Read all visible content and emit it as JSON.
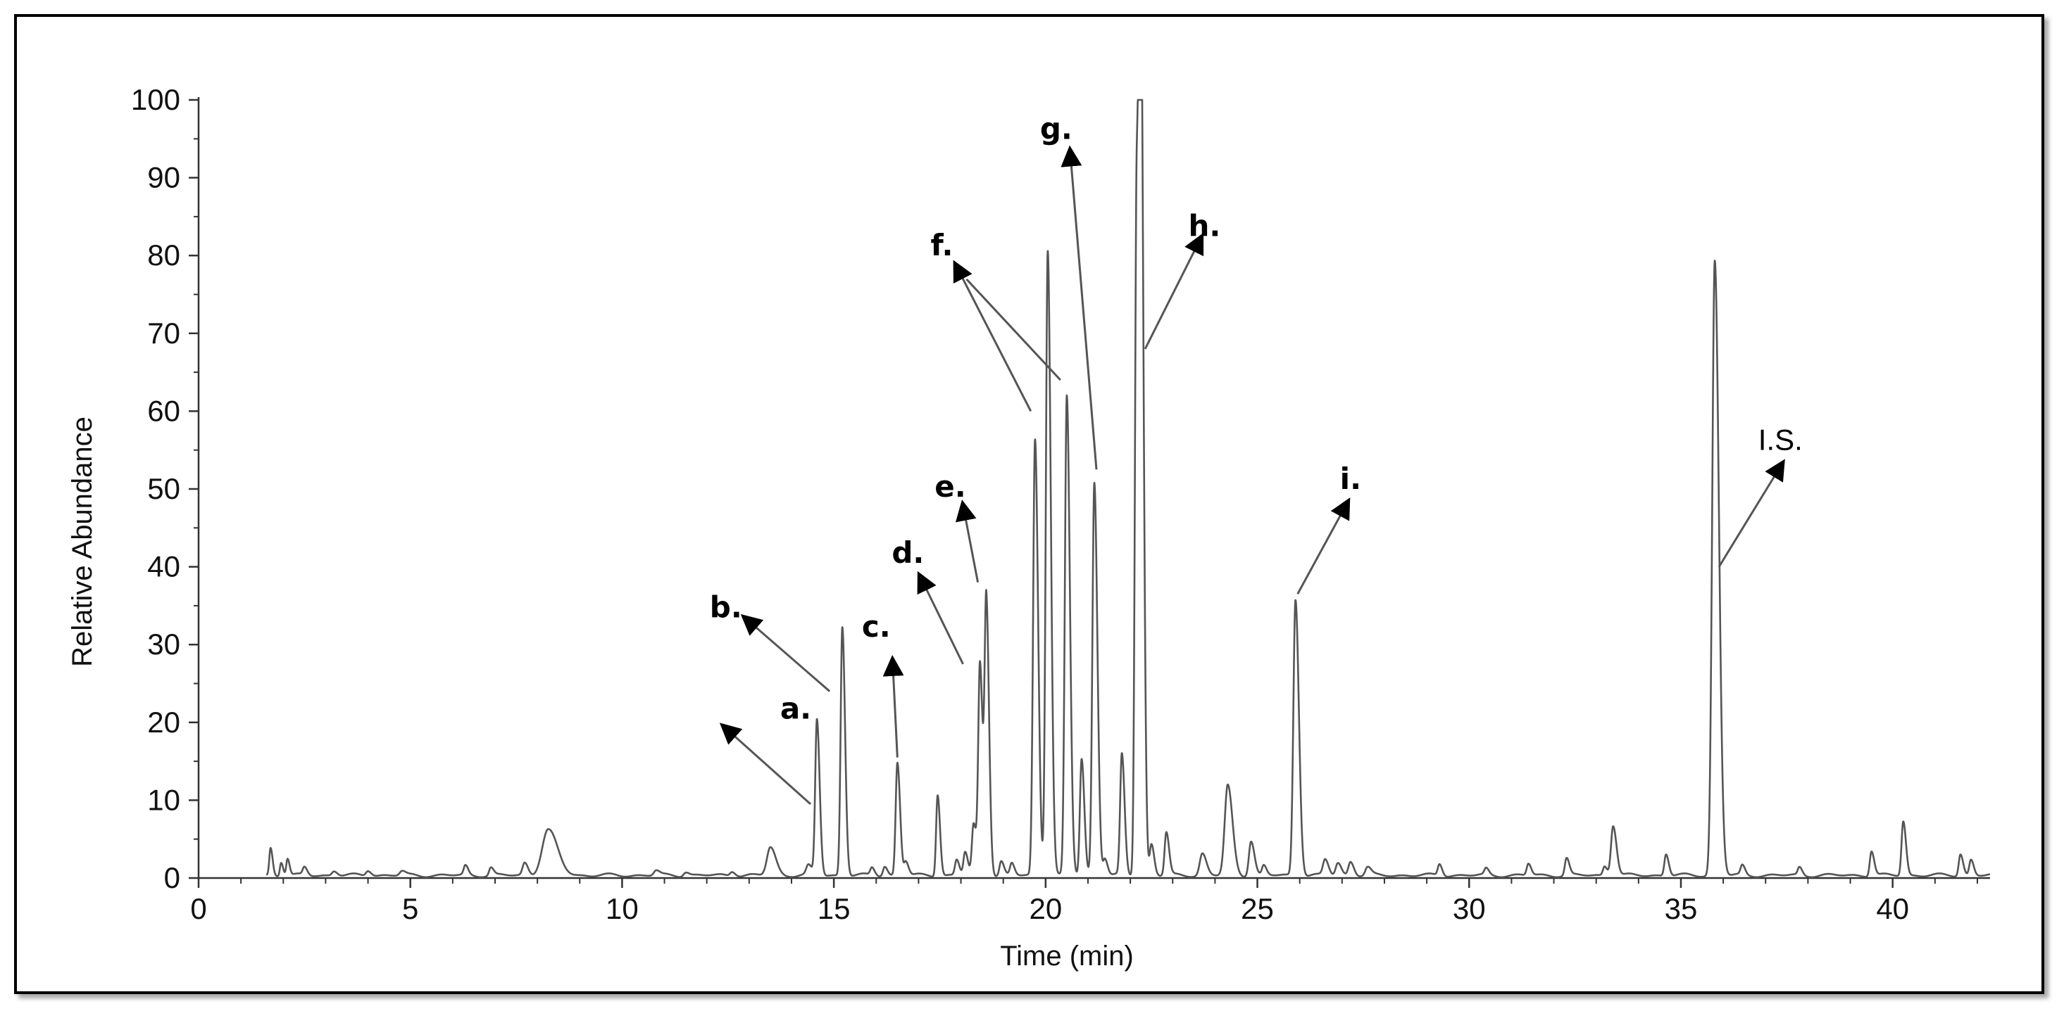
{
  "chart_data": {
    "type": "line",
    "xlabel": "Time (min)",
    "ylabel": "Relative Abundance",
    "xlim": [
      0,
      42.3
    ],
    "ylim": [
      0,
      100
    ],
    "x_ticks": [
      0,
      5,
      10,
      15,
      20,
      25,
      30,
      35,
      40
    ],
    "y_ticks": [
      0,
      10,
      20,
      30,
      40,
      50,
      60,
      70,
      80,
      90,
      100
    ],
    "line_color": "#555555",
    "peaks": [
      {
        "rt": 1.7,
        "h": 3.5,
        "w": 0.03
      },
      {
        "rt": 1.95,
        "h": 1.8,
        "w": 0.03
      },
      {
        "rt": 2.1,
        "h": 2.2,
        "w": 0.03
      },
      {
        "rt": 2.5,
        "h": 1.0,
        "w": 0.04
      },
      {
        "rt": 3.2,
        "h": 0.6,
        "w": 0.05
      },
      {
        "rt": 4.0,
        "h": 0.7,
        "w": 0.05
      },
      {
        "rt": 4.8,
        "h": 0.5,
        "w": 0.05
      },
      {
        "rt": 6.3,
        "h": 1.2,
        "w": 0.04
      },
      {
        "rt": 6.9,
        "h": 1.0,
        "w": 0.04
      },
      {
        "rt": 7.7,
        "h": 1.6,
        "w": 0.05
      },
      {
        "rt": 8.25,
        "h": 5.8,
        "w": 0.14
      },
      {
        "rt": 10.8,
        "h": 0.6,
        "w": 0.05
      },
      {
        "rt": 11.5,
        "h": 0.5,
        "w": 0.05
      },
      {
        "rt": 12.6,
        "h": 0.6,
        "w": 0.05
      },
      {
        "rt": 13.5,
        "h": 3.6,
        "w": 0.08
      },
      {
        "rt": 14.4,
        "h": 1.2,
        "w": 0.05
      },
      {
        "rt": 14.6,
        "h": 20,
        "w": 0.04
      },
      {
        "rt": 15.2,
        "h": 32,
        "w": 0.04
      },
      {
        "rt": 15.9,
        "h": 1.0,
        "w": 0.04
      },
      {
        "rt": 16.2,
        "h": 1.2,
        "w": 0.04
      },
      {
        "rt": 16.5,
        "h": 14.5,
        "w": 0.04
      },
      {
        "rt": 16.7,
        "h": 1.8,
        "w": 0.04
      },
      {
        "rt": 17.45,
        "h": 10.5,
        "w": 0.035
      },
      {
        "rt": 17.9,
        "h": 2.0,
        "w": 0.04
      },
      {
        "rt": 18.1,
        "h": 3.0,
        "w": 0.04
      },
      {
        "rt": 18.3,
        "h": 6.5,
        "w": 0.04
      },
      {
        "rt": 18.45,
        "h": 27,
        "w": 0.04
      },
      {
        "rt": 18.6,
        "h": 35,
        "w": 0.04
      },
      {
        "rt": 18.95,
        "h": 1.8,
        "w": 0.04
      },
      {
        "rt": 19.2,
        "h": 1.5,
        "w": 0.04
      },
      {
        "rt": 19.75,
        "h": 56,
        "w": 0.045
      },
      {
        "rt": 20.05,
        "h": 80.5,
        "w": 0.045
      },
      {
        "rt": 20.5,
        "h": 61.5,
        "w": 0.045
      },
      {
        "rt": 20.85,
        "h": 15,
        "w": 0.04
      },
      {
        "rt": 21.15,
        "h": 50.5,
        "w": 0.045
      },
      {
        "rt": 21.4,
        "h": 2.2,
        "w": 0.04
      },
      {
        "rt": 21.8,
        "h": 15.5,
        "w": 0.04
      },
      {
        "rt": 22.15,
        "h": 89,
        "w": 0.04
      },
      {
        "rt": 22.25,
        "h": 100,
        "w": 0.04
      },
      {
        "rt": 22.5,
        "h": 4.0,
        "w": 0.04
      },
      {
        "rt": 22.85,
        "h": 5.5,
        "w": 0.04
      },
      {
        "rt": 23.7,
        "h": 2.8,
        "w": 0.06
      },
      {
        "rt": 24.3,
        "h": 11.5,
        "w": 0.07
      },
      {
        "rt": 24.85,
        "h": 4.5,
        "w": 0.05
      },
      {
        "rt": 25.15,
        "h": 1.2,
        "w": 0.04
      },
      {
        "rt": 25.9,
        "h": 35.5,
        "w": 0.05
      },
      {
        "rt": 26.6,
        "h": 2.0,
        "w": 0.05
      },
      {
        "rt": 26.9,
        "h": 1.6,
        "w": 0.05
      },
      {
        "rt": 27.2,
        "h": 1.8,
        "w": 0.05
      },
      {
        "rt": 27.6,
        "h": 1.0,
        "w": 0.05
      },
      {
        "rt": 29.3,
        "h": 1.5,
        "w": 0.04
      },
      {
        "rt": 30.4,
        "h": 0.8,
        "w": 0.04
      },
      {
        "rt": 31.4,
        "h": 1.5,
        "w": 0.04
      },
      {
        "rt": 32.3,
        "h": 2.2,
        "w": 0.04
      },
      {
        "rt": 33.2,
        "h": 1.2,
        "w": 0.04
      },
      {
        "rt": 33.4,
        "h": 6.5,
        "w": 0.05
      },
      {
        "rt": 34.65,
        "h": 2.8,
        "w": 0.04
      },
      {
        "rt": 35.8,
        "h": 79,
        "w": 0.06
      },
      {
        "rt": 36.45,
        "h": 1.2,
        "w": 0.04
      },
      {
        "rt": 37.8,
        "h": 1.0,
        "w": 0.04
      },
      {
        "rt": 39.5,
        "h": 3.2,
        "w": 0.04
      },
      {
        "rt": 40.25,
        "h": 7.0,
        "w": 0.04
      },
      {
        "rt": 41.6,
        "h": 2.8,
        "w": 0.04
      },
      {
        "rt": 41.85,
        "h": 2.0,
        "w": 0.04
      }
    ],
    "annotations": [
      {
        "label": "a.",
        "bold": true,
        "text_x": 14.1,
        "text_y": 20.5,
        "tip_x": 12.6,
        "tip_y": 18.5,
        "tail_x": 14.45,
        "tail_y": 9.5
      },
      {
        "label": "b.",
        "bold": true,
        "text_x": 12.45,
        "text_y": 33.5,
        "tip_x": 13.1,
        "tip_y": 32.5,
        "tail_x": 14.9,
        "tail_y": 24.0
      },
      {
        "label": "c.",
        "bold": true,
        "text_x": 16.0,
        "text_y": 31.0,
        "tip_x": 16.4,
        "tip_y": 26.5,
        "tail_x": 16.5,
        "tail_y": 15.5
      },
      {
        "label": "d.",
        "bold": true,
        "text_x": 16.75,
        "text_y": 40.5,
        "tip_x": 17.15,
        "tip_y": 37.5,
        "tail_x": 18.05,
        "tail_y": 27.5
      },
      {
        "label": "e.",
        "bold": true,
        "text_x": 17.75,
        "text_y": 49.0,
        "tip_x": 18.1,
        "tip_y": 46.5,
        "tail_x": 18.4,
        "tail_y": 38.0
      },
      {
        "label": "f.",
        "bold": true,
        "text_x": 17.55,
        "text_y": 80.0,
        "tip_x": 18.0,
        "tip_y": 77.5,
        "tail_x": 19.65,
        "tail_y": 60.0
      },
      {
        "label": "g.",
        "bold": true,
        "text_x": 20.25,
        "text_y": 95.0,
        "tip_x": 20.6,
        "tip_y": 92.0,
        "tail_x": 21.2,
        "tail_y": 52.5
      },
      {
        "label": "h.",
        "bold": true,
        "text_x": 23.75,
        "text_y": 82.5,
        "tip_x": 23.55,
        "tip_y": 81.0,
        "tail_x": 22.35,
        "tail_y": 68.0
      },
      {
        "label": "i.",
        "bold": true,
        "text_x": 27.2,
        "text_y": 50.0,
        "tip_x": 27.0,
        "tip_y": 47.0,
        "tail_x": 25.95,
        "tail_y": 36.5
      },
      {
        "label": "I.S.",
        "bold": false,
        "text_x": 37.35,
        "text_y": 55.0,
        "tip_x": 37.25,
        "tip_y": 52.0,
        "tail_x": 35.9,
        "tail_y": 40.0
      }
    ],
    "extra_f_tail": {
      "tail_x": 20.35,
      "tail_y": 64.0
    }
  }
}
